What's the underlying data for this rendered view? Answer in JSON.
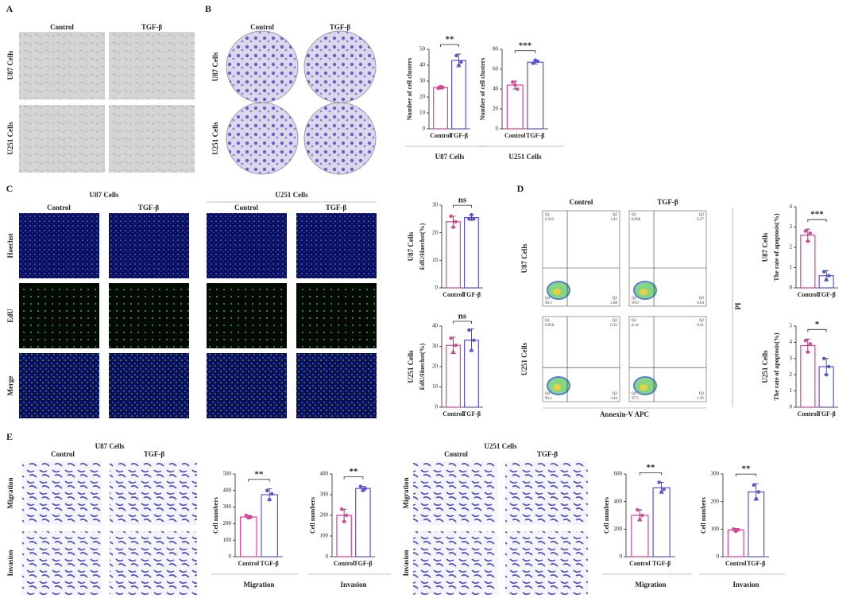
{
  "panels": {
    "A": {
      "label": "A",
      "columns": [
        "Control",
        "TGF-β"
      ],
      "rows": [
        "U87 Cells",
        "U251 Cells"
      ]
    },
    "B": {
      "label": "B",
      "columns": [
        "Control",
        "TGF-β"
      ],
      "rows": [
        "U87 Cells",
        "U251 Cells"
      ]
    },
    "C": {
      "label": "C",
      "groups": [
        "U87 Cells",
        "U251 Cells"
      ],
      "columns": [
        "Control",
        "TGF-β",
        "Control",
        "TGF-β"
      ],
      "rows": [
        "Hoechst",
        "EdU",
        "Merge"
      ]
    },
    "D": {
      "label": "D",
      "columns": [
        "Control",
        "TGF-β"
      ],
      "rows": [
        "U87 Cells",
        "U251 Cells"
      ],
      "y_label": "PI",
      "x_label": "Annexin-V APC",
      "plots": [
        [
          {
            "name": "Q1",
            "value": "0.223"
          },
          {
            "name": "Q2",
            "value": "3.42"
          },
          {
            "name": "Q4",
            "value": "96.5"
          },
          {
            "name": "Q3",
            "value": "2.88"
          }
        ],
        [
          {
            "name": "Q1",
            "value": "0.096"
          },
          {
            "name": "Q2",
            "value": "0.27"
          },
          {
            "name": "Q4",
            "value": "99.0"
          },
          {
            "name": "Q3",
            "value": "0.63"
          }
        ],
        [
          {
            "name": "Q1",
            "value": "0.056"
          },
          {
            "name": "Q2",
            "value": "0.35"
          },
          {
            "name": "Q4",
            "value": "96.2"
          },
          {
            "name": "Q3",
            "value": "3.44"
          }
        ],
        [
          {
            "name": "Q1",
            "value": "0.14"
          },
          {
            "name": "Q2",
            "value": "0.41"
          },
          {
            "name": "Q4",
            "value": "97.5"
          },
          {
            "name": "Q3",
            "value": "1.95"
          }
        ]
      ]
    },
    "E": {
      "label": "E",
      "groups": [
        "U87 Cells",
        "U251 Cells"
      ],
      "columns": [
        "Control",
        "TGF-β",
        "Control",
        "TGF-β"
      ],
      "rows": [
        "Migration",
        "Invasion",
        "Migration",
        "Invasion"
      ]
    }
  },
  "chart_data": [
    {
      "type": "bar",
      "categories": [
        "Control",
        "TGF-β"
      ],
      "values": [
        26,
        43
      ],
      "errors": [
        1,
        4
      ],
      "points": [
        [
          25.5,
          26.5,
          26
        ],
        [
          46,
          40,
          42
        ]
      ],
      "colors": [
        "#e0409a",
        "#5a50e0"
      ],
      "ylabel": "Number of cell clusters",
      "ylim": [
        0,
        50
      ],
      "yticks": [
        0,
        10,
        20,
        30,
        40,
        50
      ],
      "significance": "**",
      "group_label": "U87 Cells"
    },
    {
      "type": "bar",
      "categories": [
        "Control",
        "TGF-β"
      ],
      "values": [
        44,
        67
      ],
      "errors": [
        4,
        2
      ],
      "points": [
        [
          47,
          44,
          40
        ],
        [
          66,
          69,
          68
        ]
      ],
      "colors": [
        "#e0409a",
        "#5a50e0"
      ],
      "ylabel": "Number of cell clusters",
      "ylim": [
        0,
        80
      ],
      "yticks": [
        0,
        20,
        40,
        60,
        80
      ],
      "significance": "***",
      "group_label": "U251 Cells"
    },
    {
      "type": "bar",
      "categories": [
        "Control",
        "TGF-β"
      ],
      "values": [
        24,
        25.5
      ],
      "errors": [
        2,
        1
      ],
      "points": [
        [
          26,
          22,
          24
        ],
        [
          25,
          26.5,
          25
        ]
      ],
      "colors": [
        "#e0409a",
        "#5a50e0"
      ],
      "ylabel": "EdU/Hoechst(%)",
      "ylim": [
        0,
        30
      ],
      "yticks": [
        0,
        10,
        20,
        30
      ],
      "significance": "ns",
      "side_label": "U87 Cells"
    },
    {
      "type": "bar",
      "categories": [
        "Control",
        "TGF-β"
      ],
      "values": [
        30.5,
        33
      ],
      "errors": [
        4,
        5.5
      ],
      "points": [
        [
          34,
          27,
          30.5
        ],
        [
          38,
          28,
          33
        ]
      ],
      "colors": [
        "#e0409a",
        "#5a50e0"
      ],
      "ylabel": "EdU/Hoechst(%)",
      "ylim": [
        0,
        40
      ],
      "yticks": [
        0,
        10,
        20,
        30,
        40
      ],
      "significance": "ns",
      "side_label": "U251 Cells"
    },
    {
      "type": "bar",
      "categories": [
        "Control",
        "TGF-β"
      ],
      "values": [
        2.6,
        0.6
      ],
      "errors": [
        0.3,
        0.25
      ],
      "points": [
        [
          2.8,
          2.3,
          2.7
        ],
        [
          0.8,
          0.4,
          0.6
        ]
      ],
      "colors": [
        "#e0409a",
        "#5a50e0"
      ],
      "ylabel": "The rate of apoptosis(%)",
      "ylim": [
        0,
        4
      ],
      "yticks": [
        0,
        1,
        2,
        3,
        4
      ],
      "significance": "***",
      "side_label": "U87 Cells"
    },
    {
      "type": "bar",
      "categories": [
        "Control",
        "TGF-β"
      ],
      "values": [
        3.8,
        2.5
      ],
      "errors": [
        0.4,
        0.5
      ],
      "points": [
        [
          4.1,
          3.4,
          3.9
        ],
        [
          3.0,
          2.0,
          2.5
        ]
      ],
      "colors": [
        "#e0409a",
        "#5a50e0"
      ],
      "ylabel": "The rate of apoptosis(%)",
      "ylim": [
        0,
        5
      ],
      "yticks": [
        0,
        1,
        2,
        3,
        4,
        5
      ],
      "significance": "*",
      "side_label": "U251 Cells"
    },
    {
      "type": "bar",
      "categories": [
        "Control",
        "TGF-β"
      ],
      "values": [
        240,
        375
      ],
      "errors": [
        10,
        35
      ],
      "points": [
        [
          250,
          235,
          240
        ],
        [
          400,
          345,
          380
        ]
      ],
      "colors": [
        "#e0409a",
        "#5a50e0"
      ],
      "ylabel": "Cell numbers",
      "ylim": [
        0,
        500
      ],
      "yticks": [
        0,
        100,
        200,
        300,
        400,
        500
      ],
      "significance": "**",
      "group_label": "Migration"
    },
    {
      "type": "bar",
      "categories": [
        "Control",
        "TGF-β"
      ],
      "values": [
        200,
        330
      ],
      "errors": [
        30,
        10
      ],
      "points": [
        [
          230,
          170,
          200
        ],
        [
          340,
          320,
          330
        ]
      ],
      "colors": [
        "#e0409a",
        "#5a50e0"
      ],
      "ylabel": "Cell numbers",
      "ylim": [
        0,
        400
      ],
      "yticks": [
        0,
        100,
        200,
        300,
        400
      ],
      "significance": "**",
      "group_label": "Invasion"
    },
    {
      "type": "bar",
      "categories": [
        "Control",
        "TGF-β"
      ],
      "values": [
        300,
        500
      ],
      "errors": [
        40,
        40
      ],
      "points": [
        [
          340,
          270,
          300
        ],
        [
          540,
          470,
          490
        ]
      ],
      "colors": [
        "#e0409a",
        "#5a50e0"
      ],
      "ylabel": "Cell numbers",
      "ylim": [
        0,
        600
      ],
      "yticks": [
        0,
        200,
        400,
        600
      ],
      "significance": "**",
      "group_label": "Migration"
    },
    {
      "type": "bar",
      "categories": [
        "Control",
        "TGF-β"
      ],
      "values": [
        97,
        235
      ],
      "errors": [
        5,
        30
      ],
      "points": [
        [
          100,
          92,
          98
        ],
        [
          260,
          210,
          235
        ]
      ],
      "colors": [
        "#e0409a",
        "#5a50e0"
      ],
      "ylabel": "Cell numbers",
      "ylim": [
        0,
        300
      ],
      "yticks": [
        0,
        100,
        200,
        300
      ],
      "significance": "**",
      "group_label": "Invasion"
    }
  ]
}
